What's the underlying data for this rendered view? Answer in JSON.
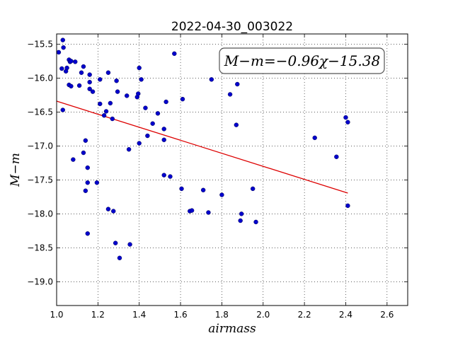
{
  "chart_data": {
    "type": "scatter",
    "title": "2022-04-30_003022",
    "xlabel": "airmass",
    "ylabel": "M−m",
    "xlim": [
      1.0,
      2.7
    ],
    "ylim": [
      -19.35,
      -15.35
    ],
    "x_ticks": [
      1.0,
      1.2,
      1.4,
      1.6,
      1.8,
      2.0,
      2.2,
      2.4,
      2.6
    ],
    "x_tick_labels": [
      "1.0",
      "1.2",
      "1.4",
      "1.6",
      "1.8",
      "2.0",
      "2.2",
      "2.4",
      "2.6"
    ],
    "y_ticks": [
      -15.5,
      -16.0,
      -16.5,
      -17.0,
      -17.5,
      -18.0,
      -18.5,
      -19.0
    ],
    "y_tick_labels": [
      "−15.5",
      "−16.0",
      "−16.5",
      "−17.0",
      "−17.5",
      "−18.0",
      "−18.5",
      "−19.0"
    ],
    "grid": true,
    "annotation": "M−m=−0.96χ−15.38",
    "fit": {
      "slope": -0.96,
      "intercept": -15.38,
      "x_range": [
        1.0,
        2.41
      ]
    },
    "points": [
      [
        1.01,
        -15.62
      ],
      [
        1.025,
        -15.86
      ],
      [
        1.03,
        -15.44
      ],
      [
        1.033,
        -15.55
      ],
      [
        1.03,
        -16.47
      ],
      [
        1.045,
        -15.9
      ],
      [
        1.05,
        -15.85
      ],
      [
        1.06,
        -15.73
      ],
      [
        1.065,
        -15.76
      ],
      [
        1.07,
        -15.75
      ],
      [
        1.06,
        -16.1
      ],
      [
        1.07,
        -16.12
      ],
      [
        1.09,
        -15.76
      ],
      [
        1.11,
        -16.11
      ],
      [
        1.12,
        -15.92
      ],
      [
        1.13,
        -15.83
      ],
      [
        1.16,
        -15.95
      ],
      [
        1.16,
        -16.06
      ],
      [
        1.16,
        -16.16
      ],
      [
        1.175,
        -16.2
      ],
      [
        1.08,
        -17.2
      ],
      [
        1.13,
        -17.1
      ],
      [
        1.14,
        -16.92
      ],
      [
        1.14,
        -17.66
      ],
      [
        1.15,
        -17.32
      ],
      [
        1.15,
        -17.54
      ],
      [
        1.195,
        -17.54
      ],
      [
        1.15,
        -18.29
      ],
      [
        1.21,
        -16.02
      ],
      [
        1.21,
        -16.38
      ],
      [
        1.23,
        -16.55
      ],
      [
        1.24,
        -16.49
      ],
      [
        1.25,
        -15.92
      ],
      [
        1.26,
        -16.37
      ],
      [
        1.27,
        -16.6
      ],
      [
        1.29,
        -16.04
      ],
      [
        1.295,
        -16.2
      ],
      [
        1.25,
        -17.93
      ],
      [
        1.275,
        -17.96
      ],
      [
        1.285,
        -18.43
      ],
      [
        1.305,
        -18.65
      ],
      [
        1.34,
        -16.26
      ],
      [
        1.35,
        -17.05
      ],
      [
        1.355,
        -18.45
      ],
      [
        1.39,
        -16.28
      ],
      [
        1.395,
        -16.23
      ],
      [
        1.4,
        -15.85
      ],
      [
        1.41,
        -16.02
      ],
      [
        1.4,
        -16.96
      ],
      [
        1.43,
        -16.44
      ],
      [
        1.44,
        -16.85
      ],
      [
        1.465,
        -16.67
      ],
      [
        1.49,
        -16.52
      ],
      [
        1.52,
        -16.75
      ],
      [
        1.52,
        -16.91
      ],
      [
        1.53,
        -16.35
      ],
      [
        1.52,
        -17.43
      ],
      [
        1.55,
        -17.45
      ],
      [
        1.57,
        -15.64
      ],
      [
        1.605,
        -17.63
      ],
      [
        1.61,
        -16.31
      ],
      [
        1.645,
        -17.96
      ],
      [
        1.655,
        -17.95
      ],
      [
        1.71,
        -17.65
      ],
      [
        1.735,
        -17.98
      ],
      [
        1.75,
        -16.02
      ],
      [
        1.8,
        -17.72
      ],
      [
        1.84,
        -16.24
      ],
      [
        1.87,
        -16.69
      ],
      [
        1.875,
        -16.09
      ],
      [
        1.89,
        -18.1
      ],
      [
        1.895,
        -18.0
      ],
      [
        1.95,
        -17.63
      ],
      [
        1.965,
        -18.12
      ],
      [
        2.25,
        -16.88
      ],
      [
        2.355,
        -17.16
      ],
      [
        2.4,
        -16.58
      ],
      [
        2.41,
        -16.65
      ],
      [
        2.41,
        -17.88
      ]
    ],
    "colors": {
      "points": "#0000cc",
      "fit": "#dd0000",
      "grid": "#000000"
    }
  }
}
